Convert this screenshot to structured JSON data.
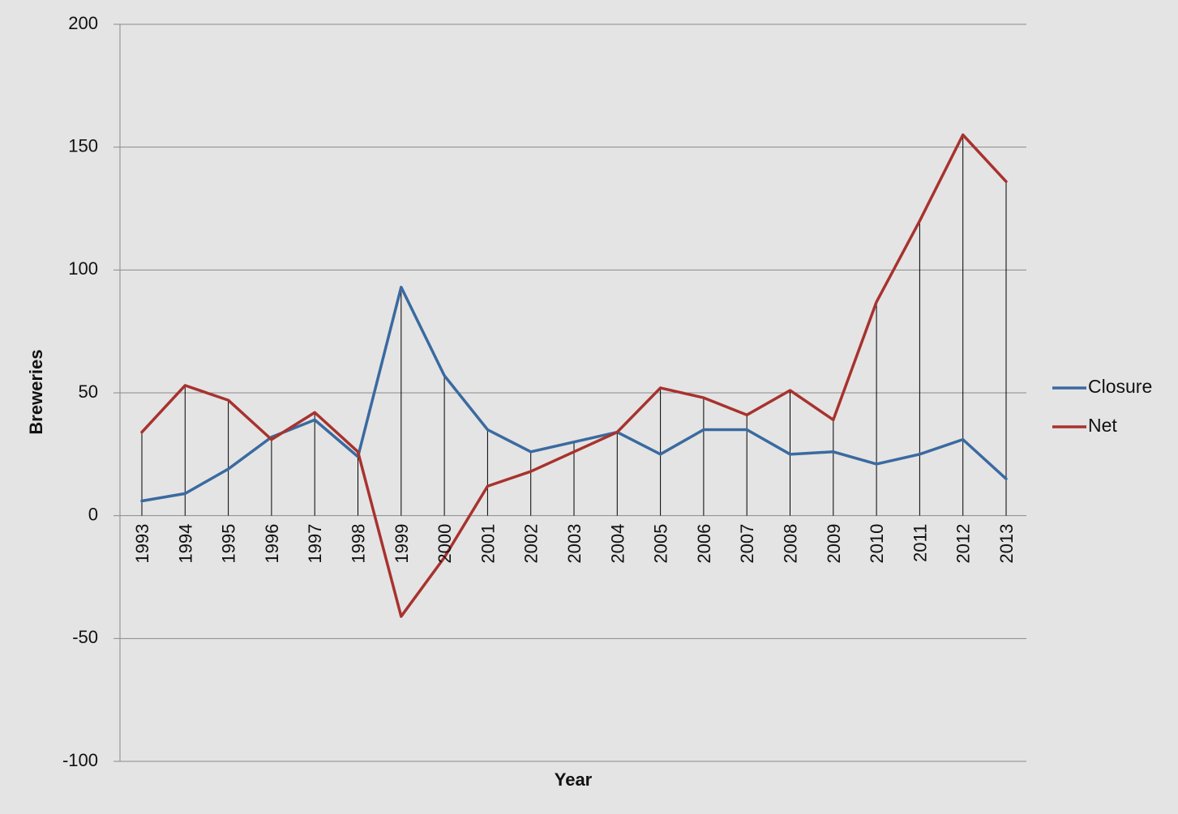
{
  "chart_data": {
    "type": "line",
    "title": "",
    "xlabel": "Year",
    "ylabel": "Breweries",
    "ylim": [
      -100,
      200
    ],
    "yticks": [
      "-100",
      "-50",
      "0",
      "50",
      "100",
      "150",
      "200"
    ],
    "grid": "horizontal",
    "legend_position": "right",
    "categories": [
      "1993",
      "1994",
      "1995",
      "1996",
      "1997",
      "1998",
      "1999",
      "2000",
      "2001",
      "2002",
      "2003",
      "2004",
      "2005",
      "2006",
      "2007",
      "2008",
      "2009",
      "2010",
      "2011",
      "2012",
      "2013"
    ],
    "series": [
      {
        "name": "Closure",
        "color": "#3a6aa0",
        "values": [
          6,
          9,
          19,
          32,
          39,
          24,
          93,
          57,
          35,
          26,
          30,
          34,
          25,
          35,
          35,
          25,
          26,
          21,
          25,
          31,
          15
        ]
      },
      {
        "name": "Net",
        "color": "#a8322e",
        "values": [
          34,
          53,
          47,
          31,
          42,
          26,
          -41,
          -17,
          12,
          18,
          26,
          34,
          52,
          48,
          41,
          51,
          39,
          87,
          120,
          155,
          136
        ]
      }
    ]
  }
}
